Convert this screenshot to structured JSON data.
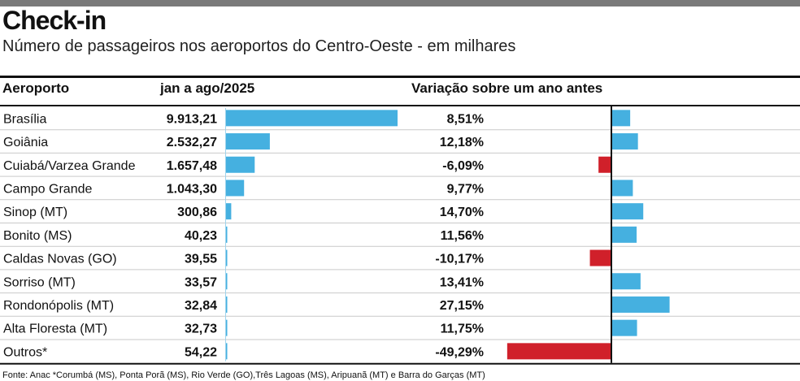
{
  "header": {
    "title": "Check-in",
    "subtitle": "Número de passageiros nos aeroportos do Centro-Oeste - em milhares"
  },
  "columns": {
    "airport": "Aeroporto",
    "period": "jan a ago/2025",
    "variation": "Variação sobre um ano antes"
  },
  "colors": {
    "bar": "#45b0e0",
    "negative": "#d0202a",
    "rule": "#111111",
    "row_rule": "#c9c9c9",
    "top_bar": "#7a7a7a"
  },
  "chart_data": {
    "type": "table",
    "rows": [
      {
        "airport": "Brasília",
        "value": 9913.21,
        "value_label": "9.913,21",
        "variation": 8.51,
        "variation_label": "8,51%"
      },
      {
        "airport": "Goiânia",
        "value": 2532.27,
        "value_label": "2.532,27",
        "variation": 12.18,
        "variation_label": "12,18%"
      },
      {
        "airport": "Cuiabá/Varzea Grande",
        "value": 1657.48,
        "value_label": "1.657,48",
        "variation": -6.09,
        "variation_label": "-6,09%"
      },
      {
        "airport": "Campo Grande",
        "value": 1043.3,
        "value_label": "1.043,30",
        "variation": 9.77,
        "variation_label": "9,77%"
      },
      {
        "airport": "Sinop (MT)",
        "value": 300.86,
        "value_label": "300,86",
        "variation": 14.7,
        "variation_label": "14,70%"
      },
      {
        "airport": "Bonito (MS)",
        "value": 40.23,
        "value_label": "40,23",
        "variation": 11.56,
        "variation_label": "11,56%"
      },
      {
        "airport": "Caldas Novas (GO)",
        "value": 39.55,
        "value_label": "39,55",
        "variation": -10.17,
        "variation_label": "-10,17%"
      },
      {
        "airport": "Sorriso (MT)",
        "value": 33.57,
        "value_label": "33,57",
        "variation": 13.41,
        "variation_label": "13,41%"
      },
      {
        "airport": "Rondonópolis (MT)",
        "value": 32.84,
        "value_label": "32,84",
        "variation": 27.15,
        "variation_label": "27,15%"
      },
      {
        "airport": "Alta Floresta (MT)",
        "value": 32.73,
        "value_label": "32,73",
        "variation": 11.75,
        "variation_label": "11,75%"
      },
      {
        "airport": "Outros*",
        "value": 54.22,
        "value_label": "54,22",
        "variation": -49.29,
        "variation_label": "-49,29%"
      }
    ]
  },
  "source": "Fonte: Anac *Corumbá (MS), Ponta Porã (MS), Rio Verde (GO),Três Lagoas (MS), Aripuanã (MT) e Barra do Garças (MT)"
}
